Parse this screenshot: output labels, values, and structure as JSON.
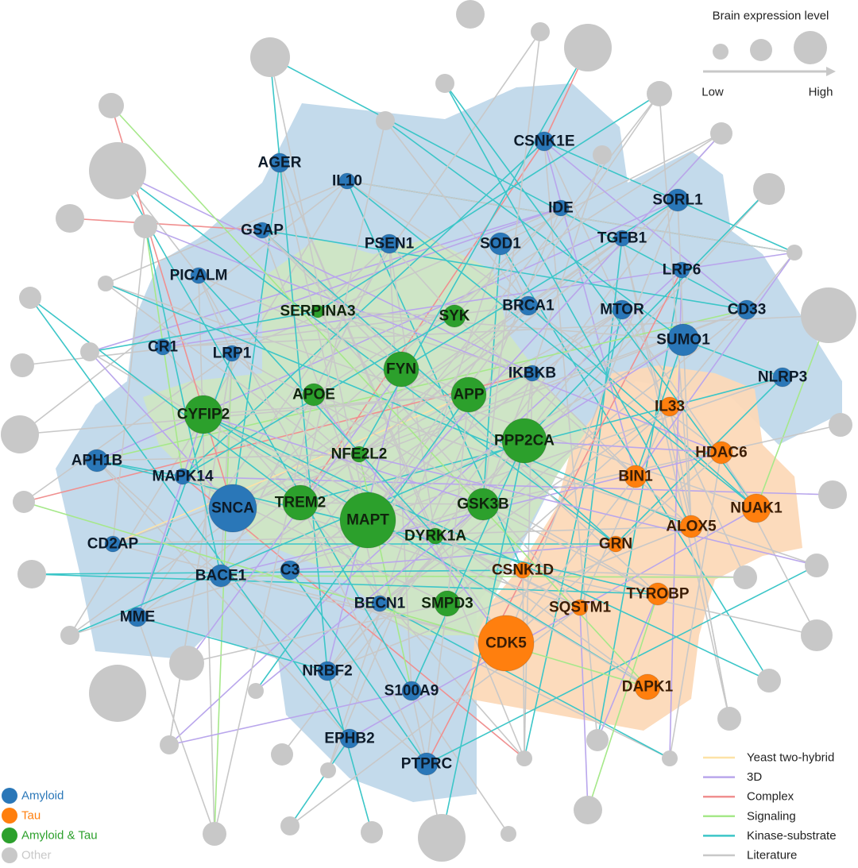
{
  "legend_size": {
    "title": "Brain expression level",
    "low": "Low",
    "high": "High"
  },
  "groups": [
    {
      "name": "Amyloid",
      "color": "#2a77b8",
      "nodes": [
        "AGER",
        "IL10",
        "CSNK1E",
        "IDE",
        "SORL1",
        "GSAP",
        "PSEN1",
        "SOD1",
        "TGFB1",
        "PICALM",
        "LRP6",
        "BRCA1",
        "MTOR",
        "CD33",
        "CR1",
        "LRP1",
        "SUMO1",
        "IKBKB",
        "NLRP3",
        "APH1B",
        "MAPK14",
        "SNCA",
        "CD2AP",
        "BACE1",
        "C3",
        "MME",
        "BECN1",
        "NRBF2",
        "S100A9",
        "EPHB2",
        "PTPRC"
      ]
    },
    {
      "name": "Tau",
      "color": "#ff7f0e",
      "nodes": [
        "IL33",
        "HDAC6",
        "BIN1",
        "NUAK1",
        "ALOX5",
        "GRN",
        "CSNK1D",
        "TYROBP",
        "SQSTM1",
        "CDK5",
        "DAPK1"
      ]
    },
    {
      "name": "Amyloid & Tau",
      "color": "#2ca02c",
      "nodes": [
        "SERPINA3",
        "SYK",
        "FYN",
        "APOE",
        "APP",
        "CYFIP2",
        "PPP2CA",
        "NFE2L2",
        "GSK3B",
        "TREM2",
        "MAPT",
        "DYRK1A",
        "SMPD3"
      ]
    },
    {
      "name": "Other",
      "color": "#c8c8c8"
    }
  ],
  "edge_types": [
    {
      "name": "Yeast two-hybrid",
      "color": "#fde2a6"
    },
    {
      "name": "3D",
      "color": "#b9a6ec"
    },
    {
      "name": "Complex",
      "color": "#f09090"
    },
    {
      "name": "Signaling",
      "color": "#a6e88a"
    },
    {
      "name": "Kinase-substrate",
      "color": "#3cc6c8"
    },
    {
      "name": "Literature",
      "color": "#c8c8c8"
    }
  ]
}
